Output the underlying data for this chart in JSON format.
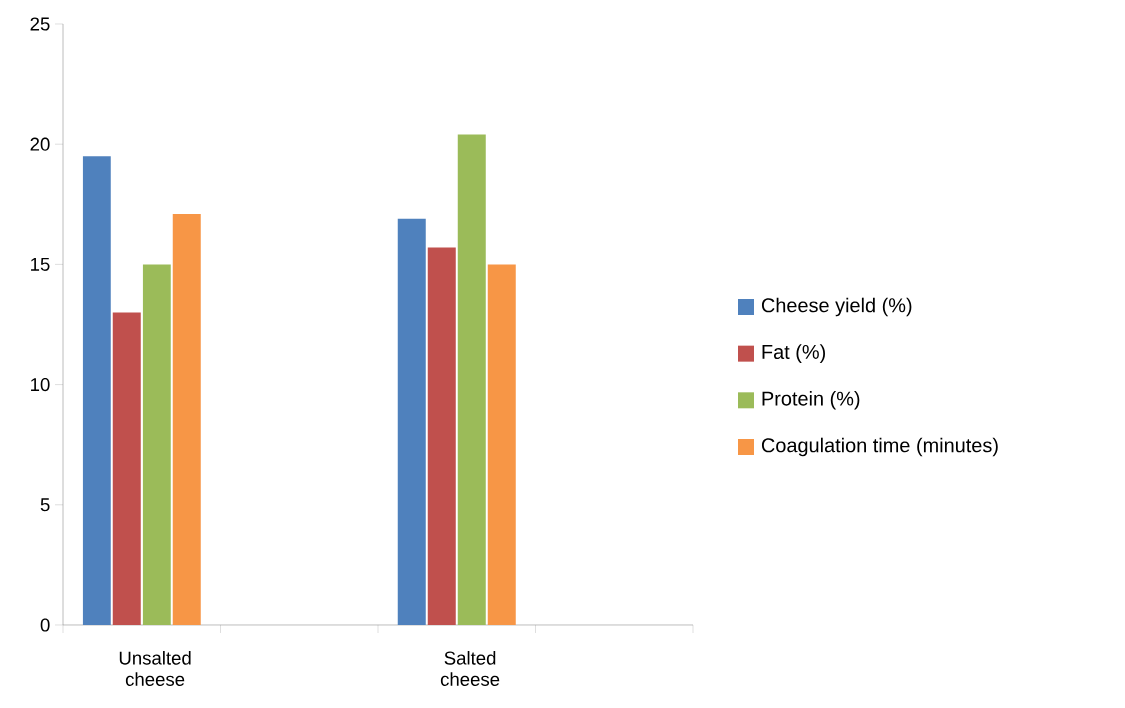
{
  "chart_data": {
    "type": "bar",
    "categories": [
      "Unsalted cheese",
      null,
      "Salted cheese",
      null
    ],
    "series": [
      {
        "name": "Cheese yield (%)",
        "color": "#4f81bd",
        "values": [
          19.5,
          null,
          16.9,
          null
        ]
      },
      {
        "name": "Fat (%)",
        "color": "#c0504d",
        "values": [
          13,
          null,
          15.7,
          null
        ]
      },
      {
        "name": "Protein (%)",
        "color": "#9bbb59",
        "values": [
          15,
          null,
          20.4,
          null
        ]
      },
      {
        "name": "Coagulation time  (minutes)",
        "color": "#f79646",
        "values": [
          17.1,
          null,
          15,
          null
        ]
      }
    ],
    "ylim": [
      0,
      25
    ],
    "yticks": [
      0,
      5,
      10,
      15,
      20,
      25
    ],
    "legend": "right"
  }
}
